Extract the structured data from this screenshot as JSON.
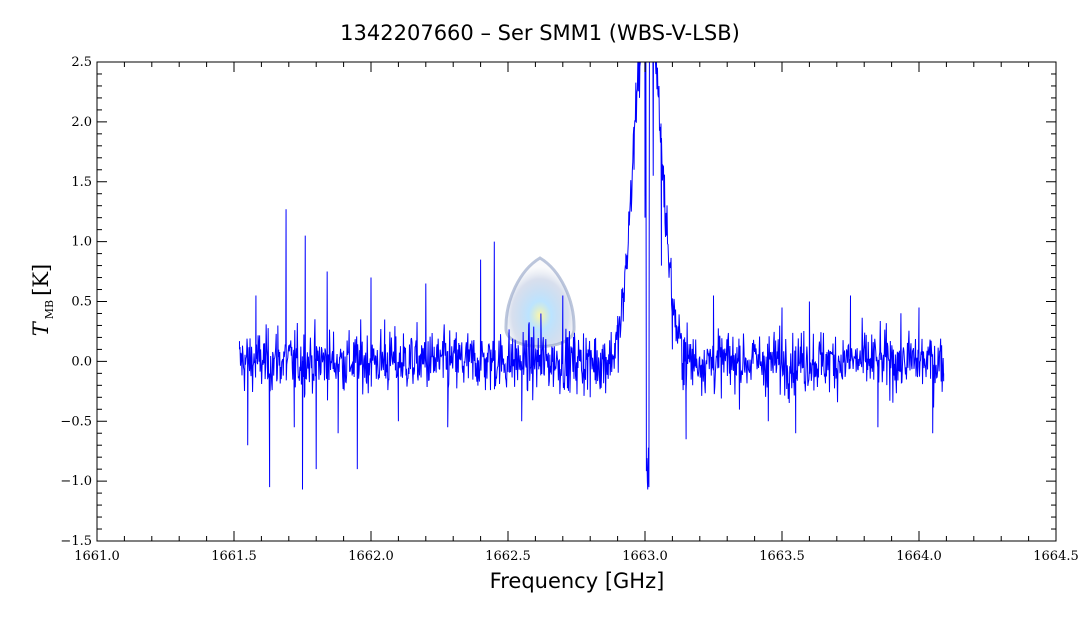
{
  "chart_data": {
    "type": "line",
    "title": "1342207660 – Ser SMM1 (WBS-V-LSB)",
    "xlabel": "Frequency [GHz]",
    "ylabel": {
      "symbol": "T",
      "subscript": "MB",
      "unit": "[K]"
    },
    "xlim": [
      1661.0,
      1664.5
    ],
    "ylim": [
      -1.5,
      2.5
    ],
    "xticks": [
      1661.0,
      1661.5,
      1662.0,
      1662.5,
      1663.0,
      1663.5,
      1664.0,
      1664.5
    ],
    "xtick_labels": [
      "1661.0",
      "1661.5",
      "1662.0",
      "1662.5",
      "1663.0",
      "1663.5",
      "1664.0",
      "1664.5"
    ],
    "yticks": [
      -1.5,
      -1.0,
      -0.5,
      0.0,
      0.5,
      1.0,
      1.5,
      2.0,
      2.5
    ],
    "ytick_labels": [
      "−1.5",
      "−1.0",
      "−0.5",
      "0.0",
      "0.5",
      "1.0",
      "1.5",
      "2.0",
      "2.5"
    ],
    "grid": false,
    "series": [
      {
        "color": "#0000ff",
        "x_range": [
          1661.52,
          1664.09
        ],
        "noise_sigma": 0.2,
        "features": [
          {
            "kind": "emission",
            "center": 1662.99,
            "peak": 2.2,
            "width": 0.04
          },
          {
            "kind": "emission",
            "center": 1663.04,
            "peak": 1.5,
            "width": 0.04
          },
          {
            "kind": "absorption",
            "center": 1663.01,
            "min": -1.07,
            "width": 0.008
          }
        ],
        "points": [
          [
            1661.52,
            0.1
          ],
          [
            1661.55,
            -0.7
          ],
          [
            1661.58,
            0.55
          ],
          [
            1661.63,
            -1.05
          ],
          [
            1661.66,
            0.3
          ],
          [
            1661.69,
            1.27
          ],
          [
            1661.72,
            -0.55
          ],
          [
            1661.75,
            -1.07
          ],
          [
            1661.76,
            1.05
          ],
          [
            1661.8,
            -0.9
          ],
          [
            1661.84,
            0.75
          ],
          [
            1661.88,
            -0.6
          ],
          [
            1661.95,
            -0.9
          ],
          [
            1662.0,
            0.7
          ],
          [
            1662.05,
            0.35
          ],
          [
            1662.1,
            -0.5
          ],
          [
            1662.2,
            0.65
          ],
          [
            1662.28,
            -0.55
          ],
          [
            1662.4,
            0.85
          ],
          [
            1662.45,
            1.0
          ],
          [
            1662.55,
            -0.5
          ],
          [
            1662.62,
            0.4
          ],
          [
            1662.7,
            0.55
          ],
          [
            1662.8,
            -0.3
          ],
          [
            1662.9,
            0.3
          ],
          [
            1662.93,
            0.9
          ],
          [
            1662.96,
            1.6
          ],
          [
            1662.98,
            2.2
          ],
          [
            1663.0,
            1.2
          ],
          [
            1663.01,
            -1.07
          ],
          [
            1663.03,
            1.55
          ],
          [
            1663.06,
            0.8
          ],
          [
            1663.1,
            0.1
          ],
          [
            1663.15,
            -0.65
          ],
          [
            1663.25,
            0.55
          ],
          [
            1663.45,
            -0.5
          ],
          [
            1663.5,
            0.45
          ],
          [
            1663.55,
            -0.6
          ],
          [
            1663.6,
            0.5
          ],
          [
            1663.75,
            0.55
          ],
          [
            1663.85,
            -0.55
          ],
          [
            1664.0,
            0.45
          ],
          [
            1664.05,
            -0.6
          ],
          [
            1664.09,
            -0.1
          ]
        ]
      }
    ]
  }
}
